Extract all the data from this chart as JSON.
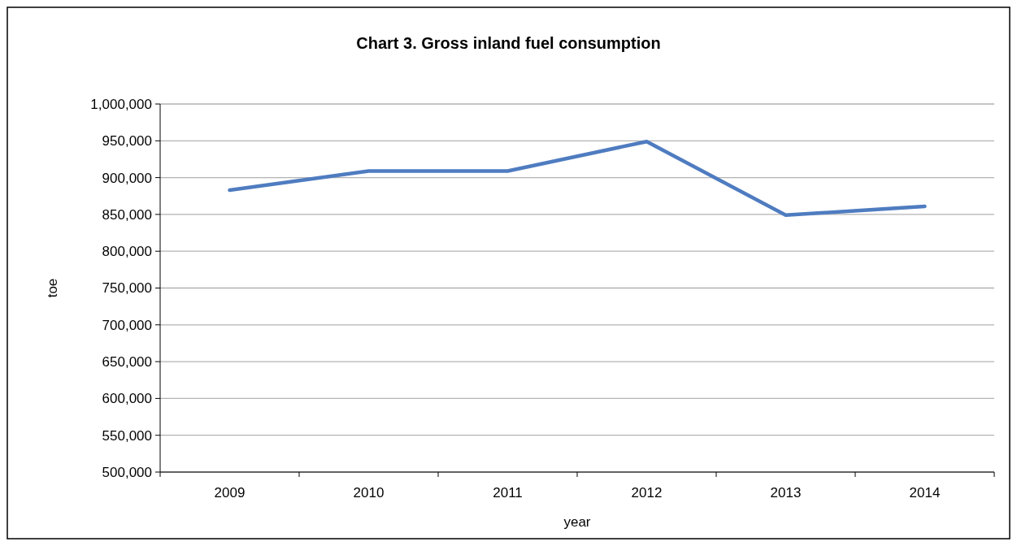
{
  "chart_data": {
    "type": "line",
    "title": "Chart 3. Gross inland fuel consumption",
    "xlabel": "year",
    "ylabel": "toe",
    "categories": [
      "2009",
      "2010",
      "2011",
      "2012",
      "2013",
      "2014"
    ],
    "series": [
      {
        "color": "#4f7cc0",
        "values": [
          883000,
          909000,
          909000,
          949000,
          849000,
          861000
        ]
      }
    ],
    "ylim": [
      500000,
      1000000
    ],
    "yticks": [
      {
        "value": 500000,
        "label": "500,000"
      },
      {
        "value": 550000,
        "label": "550,000"
      },
      {
        "value": 600000,
        "label": "600,000"
      },
      {
        "value": 650000,
        "label": "650,000"
      },
      {
        "value": 700000,
        "label": "700,000"
      },
      {
        "value": 750000,
        "label": "750,000"
      },
      {
        "value": 800000,
        "label": "800,000"
      },
      {
        "value": 850000,
        "label": "850,000"
      },
      {
        "value": 900000,
        "label": "900,000"
      },
      {
        "value": 950000,
        "label": "950,000"
      },
      {
        "value": 1000000,
        "label": "1,000,000"
      }
    ],
    "grid": "y",
    "marker": "none",
    "line_style": "solid"
  }
}
